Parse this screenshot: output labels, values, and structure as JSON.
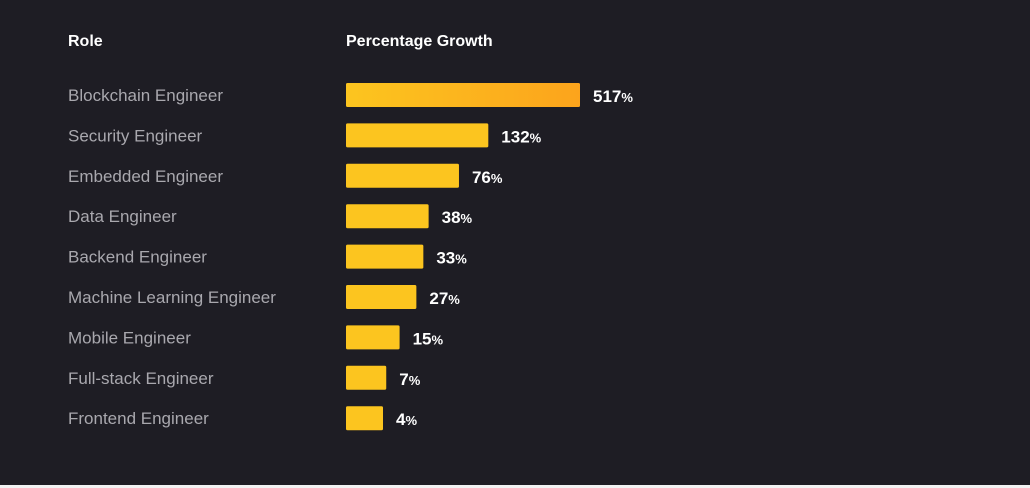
{
  "chart_data": {
    "type": "bar",
    "orientation": "horizontal",
    "header_category": "Role",
    "header_value": "Percentage Growth",
    "categories": [
      "Blockchain Engineer",
      "Security Engineer",
      "Embedded Engineer",
      "Data Engineer",
      "Backend Engineer",
      "Machine Learning Engineer",
      "Mobile Engineer",
      "Full-stack Engineer",
      "Frontend Engineer"
    ],
    "values": [
      517,
      132,
      76,
      38,
      33,
      27,
      15,
      7,
      4
    ],
    "value_suffix": "%",
    "colors": {
      "background": "#1e1d24",
      "bar": "#fcc51f",
      "bar_top": "#fca41c",
      "category_text": "#a9a8ae",
      "value_text": "#ffffff"
    }
  }
}
